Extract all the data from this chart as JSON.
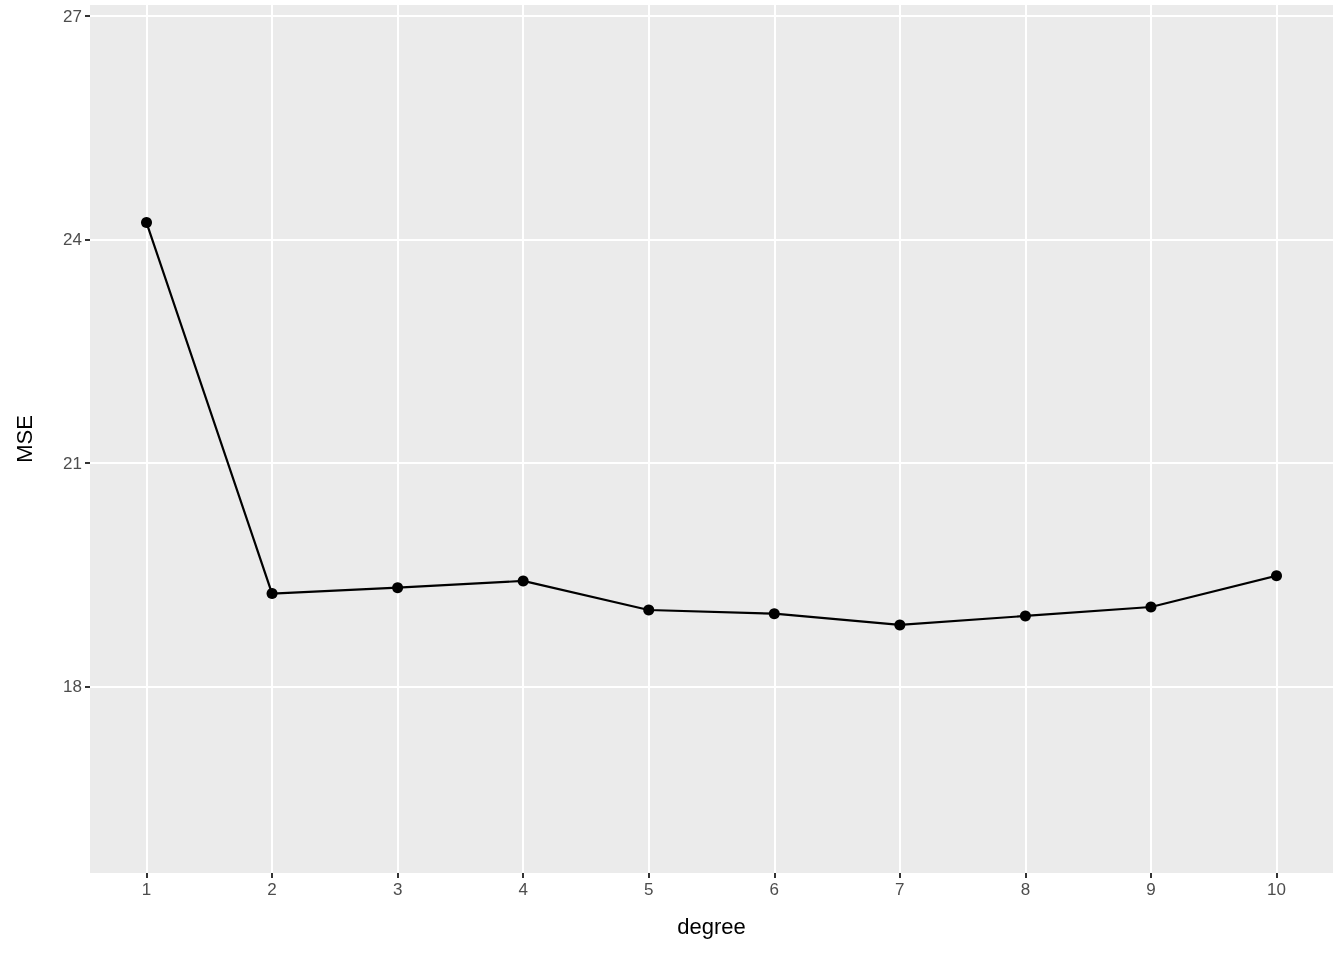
{
  "chart_data": {
    "type": "line",
    "xlabel": "degree",
    "ylabel": "MSE",
    "x": [
      1,
      2,
      3,
      4,
      5,
      6,
      7,
      8,
      9,
      10
    ],
    "series": [
      {
        "color": "#000000",
        "values": [
          24.23,
          19.25,
          19.33,
          19.42,
          19.03,
          18.98,
          18.83,
          18.95,
          19.07,
          19.49
        ]
      }
    ],
    "xlim": [
      0.55,
      10.45
    ],
    "xticks": [
      1,
      2,
      3,
      4,
      5,
      6,
      7,
      8,
      9,
      10
    ],
    "ylim": [
      15.5,
      27.15
    ],
    "yticks": [
      18,
      21,
      24,
      27
    ],
    "grid": true,
    "marker": "circle",
    "line_style": "solid"
  }
}
